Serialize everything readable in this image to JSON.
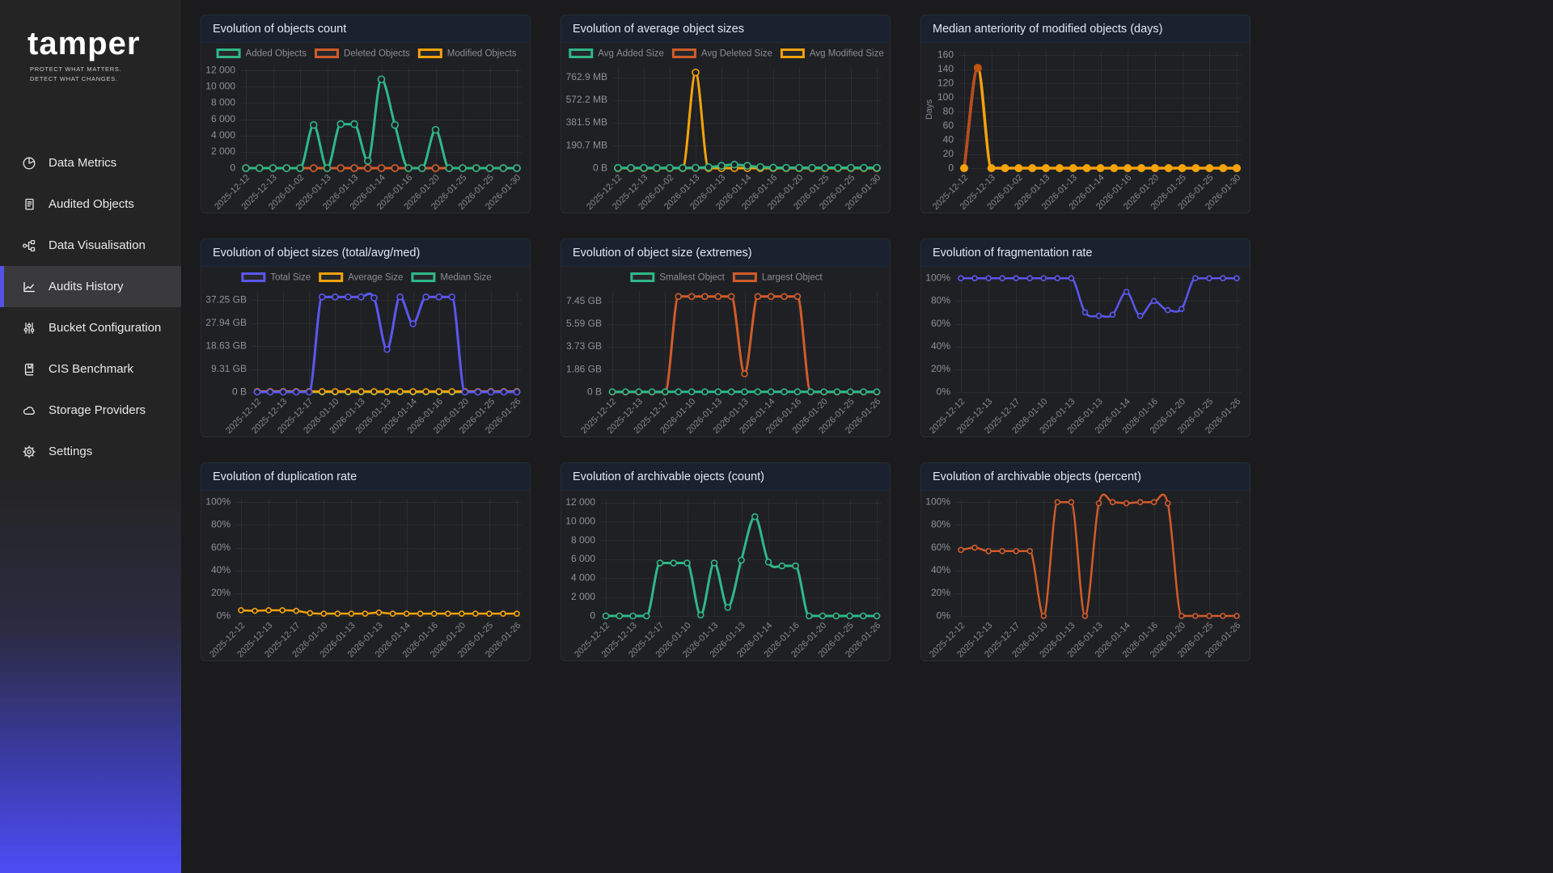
{
  "sidebar": {
    "logo": "tamper",
    "tagline_line1": "PROTECT WHAT MATTERS.",
    "tagline_line2": "DETECT WHAT CHANGES.",
    "items": [
      {
        "label": "Data Metrics",
        "icon": "pie-chart-icon",
        "active": false
      },
      {
        "label": "Audited Objects",
        "icon": "document-icon",
        "active": false
      },
      {
        "label": "Data Visualisation",
        "icon": "network-nodes-icon",
        "active": false
      },
      {
        "label": "Audits History",
        "icon": "line-chart-icon",
        "active": true
      },
      {
        "label": "Bucket Configuration",
        "icon": "sliders-icon",
        "active": false
      },
      {
        "label": "CIS Benchmark",
        "icon": "book-icon",
        "active": false
      },
      {
        "label": "Storage Providers",
        "icon": "cloud-icon",
        "active": false
      },
      {
        "label": "Settings",
        "icon": "gear-icon",
        "active": false
      }
    ],
    "accent_color": "#5552e8"
  },
  "colors": {
    "green": "#2fb886",
    "orange": "#d05c2a",
    "amber": "#f5a30b",
    "purple": "#5b57ee"
  },
  "chart_data": [
    {
      "type": "line",
      "title": "Evolution of objects count",
      "ylim": [
        0,
        12400
      ],
      "y_ticks": [
        {
          "v": 0,
          "label": "0"
        },
        {
          "v": 2000,
          "label": "2 000"
        },
        {
          "v": 4000,
          "label": "4 000"
        },
        {
          "v": 6000,
          "label": "6 000"
        },
        {
          "v": 8000,
          "label": "8 000"
        },
        {
          "v": 10000,
          "label": "10 000"
        },
        {
          "v": 12000,
          "label": "12 000"
        }
      ],
      "x_labels": [
        "2025-12-12",
        "2025-12-13",
        "2026-01-02",
        "2026-01-13",
        "2026-01-13",
        "2026-01-14",
        "2026-01-16",
        "2026-01-20",
        "2026-01-25",
        "2026-01-25",
        "2026-01-30"
      ],
      "show_legend": true,
      "legend_position": "top",
      "grid": true,
      "marker_r": 4,
      "line_width": 3,
      "draw_order": [
        2,
        1,
        0
      ],
      "series": [
        {
          "name": "Added Objects",
          "color": "#2fb886",
          "values": [
            0,
            0,
            0,
            0,
            0,
            5300,
            0,
            5400,
            5400,
            900,
            10900,
            5300,
            0,
            0,
            4700,
            0,
            0,
            0,
            0,
            0,
            0
          ]
        },
        {
          "name": "Deleted Objects",
          "color": "#d05c2a",
          "values": [
            0,
            0,
            0,
            0,
            0,
            0,
            0,
            0,
            0,
            0,
            0,
            0,
            0,
            0,
            0,
            0,
            0,
            0,
            0,
            0,
            0
          ]
        },
        {
          "name": "Modified Objects",
          "color": "#f5a30b",
          "values": [
            0,
            0,
            0,
            0,
            0,
            0,
            0,
            0,
            0,
            0,
            0,
            0,
            0,
            0,
            0,
            0,
            0,
            0,
            0,
            0,
            0
          ]
        }
      ]
    },
    {
      "type": "line",
      "title": "Evolution of average object sizes",
      "ylim": [
        0,
        850
      ],
      "y_ticks": [
        {
          "v": 0,
          "label": "0 B"
        },
        {
          "v": 190.7,
          "label": "190.7 MB"
        },
        {
          "v": 381.5,
          "label": "381.5 MB"
        },
        {
          "v": 572.2,
          "label": "572.2 MB"
        },
        {
          "v": 762.9,
          "label": "762.9 MB"
        }
      ],
      "x_labels": [
        "2025-12-12",
        "2025-12-13",
        "2026-01-02",
        "2026-01-13",
        "2026-01-13",
        "2026-01-14",
        "2026-01-16",
        "2026-01-20",
        "2026-01-25",
        "2026-01-25",
        "2026-01-30"
      ],
      "show_legend": true,
      "legend_position": "top",
      "grid": true,
      "marker_r": 4,
      "line_width": 3,
      "draw_order": [
        1,
        2,
        0
      ],
      "series": [
        {
          "name": "Avg Added Size",
          "color": "#2fb886",
          "values": [
            2,
            2,
            2,
            2,
            2,
            2,
            3,
            8,
            20,
            30,
            20,
            10,
            4,
            3,
            3,
            3,
            3,
            3,
            3,
            3,
            3
          ]
        },
        {
          "name": "Avg Deleted Size",
          "color": "#d05c2a",
          "values": [
            0,
            0,
            0,
            0,
            0,
            0,
            0,
            0,
            0,
            0,
            0,
            0,
            0,
            0,
            0,
            0,
            0,
            0,
            0,
            0,
            0
          ]
        },
        {
          "name": "Avg Modified Size",
          "color": "#f5a30b",
          "values": [
            0,
            0,
            0,
            0,
            0,
            0,
            805,
            0,
            0,
            0,
            0,
            0,
            0,
            0,
            0,
            0,
            0,
            0,
            0,
            0,
            0
          ]
        }
      ]
    },
    {
      "type": "line",
      "title": "Median anteriority of modified objects (days)",
      "ylim": [
        0,
        166
      ],
      "y_axis_label": "Days",
      "y_ticks": [
        {
          "v": 0,
          "label": "0"
        },
        {
          "v": 20,
          "label": "20"
        },
        {
          "v": 40,
          "label": "40"
        },
        {
          "v": 60,
          "label": "60"
        },
        {
          "v": 80,
          "label": "80"
        },
        {
          "v": 100,
          "label": "100"
        },
        {
          "v": 120,
          "label": "120"
        },
        {
          "v": 140,
          "label": "140"
        },
        {
          "v": 160,
          "label": "160"
        }
      ],
      "x_labels": [
        "2025-12-12",
        "2025-12-13",
        "2026-01-02",
        "2026-01-13",
        "2026-01-13",
        "2026-01-14",
        "2026-01-16",
        "2026-01-20",
        "2026-01-25",
        "2026-01-25",
        "2026-01-30"
      ],
      "show_legend": false,
      "grid": true,
      "marker_r": 5,
      "line_width": 3.5,
      "series": [
        {
          "color": "#f5a30b",
          "marker": "filled",
          "segment_colors": {
            "0": "#b84d1e"
          },
          "point_colors": {
            "1": "#c25411"
          },
          "values": [
            0,
            142,
            0,
            0,
            0,
            0,
            0,
            0,
            0,
            0,
            0,
            0,
            0,
            0,
            0,
            0,
            0,
            0,
            0,
            0,
            0
          ]
        }
      ]
    },
    {
      "type": "line",
      "title": "Evolution of object sizes (total/avg/med)",
      "ylim": [
        0,
        41
      ],
      "y_ticks": [
        {
          "v": 0,
          "label": "0 B"
        },
        {
          "v": 9.31,
          "label": "9.31 GB"
        },
        {
          "v": 18.63,
          "label": "18.63 GB"
        },
        {
          "v": 27.94,
          "label": "27.94 GB"
        },
        {
          "v": 37.25,
          "label": "37.25 GB"
        }
      ],
      "x_labels": [
        "2025-12-12",
        "2025-12-13",
        "2025-12-17",
        "2026-01-10",
        "2026-01-13",
        "2026-01-13",
        "2026-01-14",
        "2026-01-16",
        "2026-01-20",
        "2026-01-25",
        "2026-01-26"
      ],
      "show_legend": true,
      "legend_position": "top",
      "grid": true,
      "marker_r": 3.5,
      "line_width": 3,
      "draw_order": [
        2,
        1,
        0
      ],
      "series": [
        {
          "name": "Total Size",
          "color": "#5b57ee",
          "values": [
            0,
            0,
            0,
            0,
            0,
            38.6,
            38.6,
            38.6,
            38.6,
            38.2,
            17.3,
            38.6,
            27.7,
            38.6,
            38.6,
            38.6,
            0,
            0,
            0,
            0,
            0
          ]
        },
        {
          "name": "Average Size",
          "color": "#f5a30b",
          "values": [
            0.2,
            0.2,
            0.2,
            0.2,
            0.2,
            0.2,
            0.2,
            0.2,
            0.2,
            0.2,
            0.2,
            0.2,
            0.2,
            0.2,
            0.2,
            0.2,
            0.2,
            0.2,
            0.2,
            0.2,
            0.2
          ]
        },
        {
          "name": "Median Size",
          "color": "#2fb886",
          "values": [
            0.05,
            0.05,
            0.05,
            0.05,
            0.05,
            0.05,
            0.05,
            0.05,
            0.05,
            0.05,
            0.05,
            0.05,
            0.05,
            0.05,
            0.05,
            0.05,
            0.05,
            0.05,
            0.05,
            0.05,
            0.05
          ]
        }
      ]
    },
    {
      "type": "line",
      "title": "Evolution of object size (extremes)",
      "ylim": [
        0,
        8.3
      ],
      "y_ticks": [
        {
          "v": 0,
          "label": "0 B"
        },
        {
          "v": 1.86,
          "label": "1.86 GB"
        },
        {
          "v": 3.73,
          "label": "3.73 GB"
        },
        {
          "v": 5.59,
          "label": "5.59 GB"
        },
        {
          "v": 7.45,
          "label": "7.45 GB"
        }
      ],
      "x_labels": [
        "2025-12-12",
        "2025-12-13",
        "2025-12-17",
        "2026-01-10",
        "2026-01-13",
        "2026-01-13",
        "2026-01-14",
        "2026-01-16",
        "2026-01-20",
        "2026-01-25",
        "2026-01-26"
      ],
      "show_legend": true,
      "legend_position": "top",
      "grid": true,
      "marker_r": 3.5,
      "line_width": 3,
      "draw_order": [
        1,
        0
      ],
      "series": [
        {
          "name": "Smallest Object",
          "color": "#2fb886",
          "values": [
            0.02,
            0.02,
            0.02,
            0.02,
            0.02,
            0.02,
            0.02,
            0.02,
            0.02,
            0.02,
            0.02,
            0.02,
            0.02,
            0.02,
            0.02,
            0.02,
            0.02,
            0.02,
            0.02,
            0.02,
            0.02
          ]
        },
        {
          "name": "Largest Object",
          "color": "#d05c2a",
          "values": [
            0,
            0,
            0,
            0,
            0,
            7.85,
            7.85,
            7.85,
            7.85,
            7.85,
            1.5,
            7.85,
            7.85,
            7.85,
            7.85,
            0,
            0,
            0,
            0,
            0,
            0
          ]
        }
      ]
    },
    {
      "type": "line",
      "title": "Evolution of fragmentation rate",
      "ylim": [
        0,
        103
      ],
      "y_ticks": [
        {
          "v": 0,
          "label": "0%"
        },
        {
          "v": 20,
          "label": "20%"
        },
        {
          "v": 40,
          "label": "40%"
        },
        {
          "v": 60,
          "label": "60%"
        },
        {
          "v": 80,
          "label": "80%"
        },
        {
          "v": 100,
          "label": "100%"
        }
      ],
      "x_labels": [
        "2025-12-12",
        "2025-12-13",
        "2025-12-17",
        "2026-01-10",
        "2026-01-13",
        "2026-01-13",
        "2026-01-14",
        "2026-01-16",
        "2026-01-20",
        "2026-01-25",
        "2026-01-26"
      ],
      "show_legend": false,
      "grid": true,
      "marker_r": 3,
      "line_width": 2.5,
      "series": [
        {
          "color": "#5b57ee",
          "values": [
            100,
            100,
            100,
            100,
            100,
            100,
            100,
            100,
            100,
            70,
            67,
            68,
            88,
            67,
            80,
            72,
            73,
            100,
            100,
            100,
            100
          ]
        }
      ]
    },
    {
      "type": "line",
      "title": "Evolution of duplication rate",
      "ylim": [
        0,
        103
      ],
      "y_ticks": [
        {
          "v": 0,
          "label": "0%"
        },
        {
          "v": 20,
          "label": "20%"
        },
        {
          "v": 40,
          "label": "40%"
        },
        {
          "v": 60,
          "label": "60%"
        },
        {
          "v": 80,
          "label": "80%"
        },
        {
          "v": 100,
          "label": "100%"
        }
      ],
      "x_labels": [
        "2025-12-12",
        "2025-12-13",
        "2025-12-17",
        "2026-01-10",
        "2026-01-13",
        "2026-01-13",
        "2026-01-14",
        "2026-01-16",
        "2026-01-20",
        "2026-01-25",
        "2026-01-26"
      ],
      "show_legend": false,
      "grid": true,
      "marker_r": 3,
      "line_width": 2.5,
      "series": [
        {
          "color": "#f5a30b",
          "values": [
            5,
            4.5,
            5,
            5,
            4.5,
            2.5,
            2,
            2,
            2,
            2,
            3,
            2,
            2,
            2,
            2,
            2,
            2,
            2,
            2,
            2,
            2
          ]
        }
      ]
    },
    {
      "type": "line",
      "title": "Evolution of archivable ojects (count)",
      "ylim": [
        0,
        12400
      ],
      "y_ticks": [
        {
          "v": 0,
          "label": "0"
        },
        {
          "v": 2000,
          "label": "2 000"
        },
        {
          "v": 4000,
          "label": "4 000"
        },
        {
          "v": 6000,
          "label": "6 000"
        },
        {
          "v": 8000,
          "label": "8 000"
        },
        {
          "v": 10000,
          "label": "10 000"
        },
        {
          "v": 12000,
          "label": "12 000"
        }
      ],
      "x_labels": [
        "2025-12-12",
        "2025-12-13",
        "2025-12-17",
        "2026-01-10",
        "2026-01-13",
        "2026-01-13",
        "2026-01-14",
        "2026-01-16",
        "2026-01-20",
        "2026-01-25",
        "2026-01-26"
      ],
      "show_legend": false,
      "grid": true,
      "marker_r": 3.5,
      "line_width": 3,
      "series": [
        {
          "color": "#2fb886",
          "values": [
            0,
            0,
            0,
            0,
            5600,
            5600,
            5600,
            100,
            5600,
            900,
            5900,
            10500,
            5700,
            5300,
            5300,
            0,
            0,
            0,
            0,
            0,
            0
          ]
        }
      ]
    },
    {
      "type": "line",
      "title": "Evolution of archivable objects (percent)",
      "ylim": [
        0,
        103
      ],
      "y_ticks": [
        {
          "v": 0,
          "label": "0%"
        },
        {
          "v": 20,
          "label": "20%"
        },
        {
          "v": 40,
          "label": "40%"
        },
        {
          "v": 60,
          "label": "60%"
        },
        {
          "v": 80,
          "label": "80%"
        },
        {
          "v": 100,
          "label": "100%"
        }
      ],
      "x_labels": [
        "2025-12-12",
        "2025-12-13",
        "2025-12-17",
        "2026-01-10",
        "2026-01-13",
        "2026-01-13",
        "2026-01-14",
        "2026-01-16",
        "2026-01-20",
        "2026-01-25",
        "2026-01-26"
      ],
      "show_legend": false,
      "grid": true,
      "marker_r": 3,
      "line_width": 2.5,
      "series": [
        {
          "color": "#d05c2a",
          "values": [
            58,
            60,
            57,
            57,
            57,
            57,
            0,
            100,
            100,
            0,
            99,
            100,
            99,
            100,
            100,
            99,
            0,
            0,
            0,
            0,
            0
          ]
        }
      ]
    }
  ]
}
